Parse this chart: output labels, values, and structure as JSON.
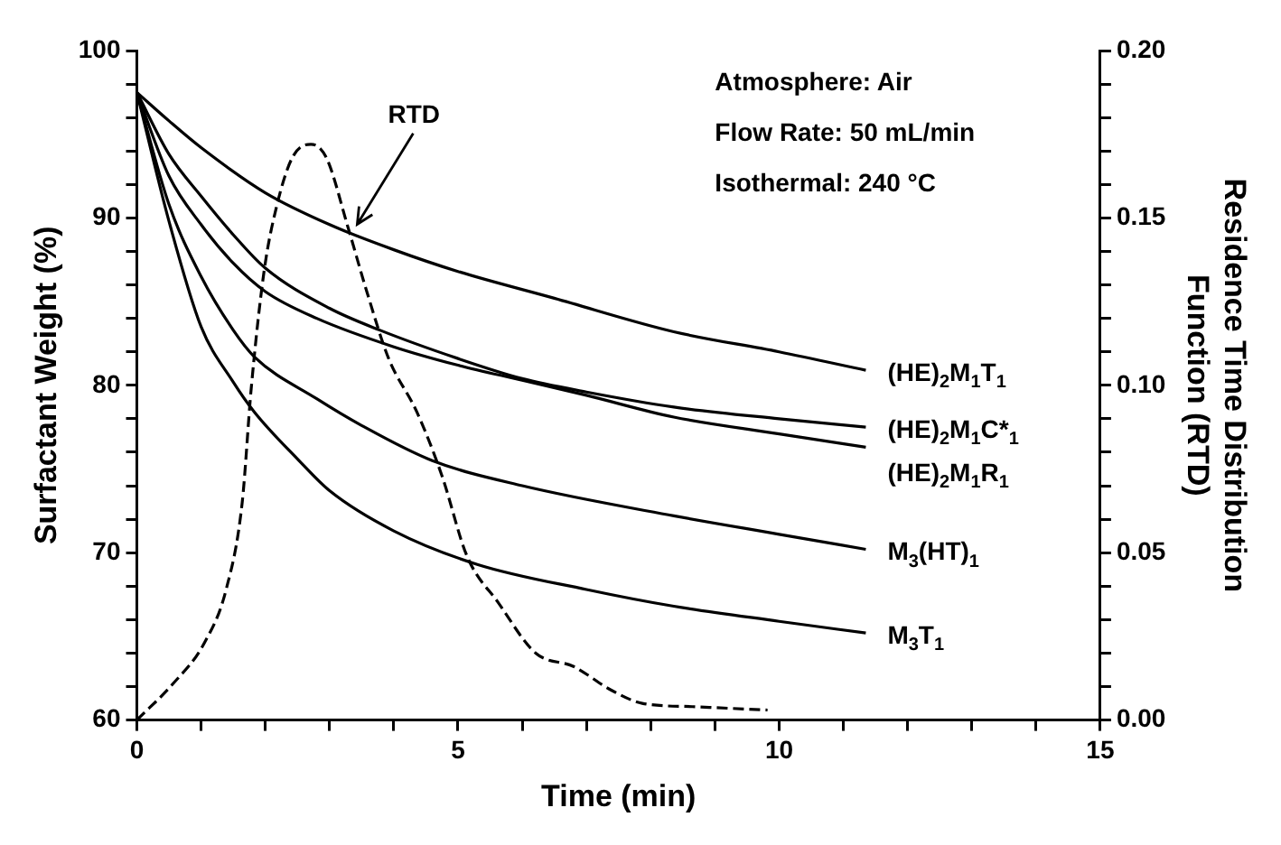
{
  "chart_data": {
    "type": "line",
    "xlabel": "Time (min)",
    "ylabel": "Surfactant Weight (%)",
    "y2label": "Residence Time Distribution Function (RTD)",
    "xlim": [
      0,
      15
    ],
    "ylim": [
      60,
      100
    ],
    "y2lim": [
      0,
      0.2
    ],
    "xticks": [
      0,
      {
        "value": 1,
        "label": null
      },
      {
        "value": 2,
        "label": null
      },
      {
        "value": 3,
        "label": null
      },
      {
        "value": 4,
        "label": null
      },
      5,
      {
        "value": 6,
        "label": null
      },
      {
        "value": 7,
        "label": null
      },
      {
        "value": 8,
        "label": null
      },
      {
        "value": 9,
        "label": null
      },
      10,
      {
        "value": 11,
        "label": null
      },
      {
        "value": 12,
        "label": null
      },
      {
        "value": 13,
        "label": null
      },
      {
        "value": 14,
        "label": null
      },
      15
    ],
    "yticks": [
      60,
      {
        "value": 62,
        "label": null
      },
      {
        "value": 64,
        "label": null
      },
      {
        "value": 66,
        "label": null
      },
      {
        "value": 68,
        "label": null
      },
      70,
      {
        "value": 72,
        "label": null
      },
      {
        "value": 74,
        "label": null
      },
      {
        "value": 76,
        "label": null
      },
      {
        "value": 78,
        "label": null
      },
      80,
      {
        "value": 82,
        "label": null
      },
      {
        "value": 84,
        "label": null
      },
      {
        "value": 86,
        "label": null
      },
      {
        "value": 88,
        "label": null
      },
      90,
      {
        "value": 92,
        "label": null
      },
      {
        "value": 94,
        "label": null
      },
      {
        "value": 96,
        "label": null
      },
      {
        "value": 98,
        "label": null
      },
      100
    ],
    "y2ticks": [
      {
        "value": 0,
        "label": "0.00"
      },
      {
        "value": 0.01,
        "label": null
      },
      {
        "value": 0.02,
        "label": null
      },
      {
        "value": 0.03,
        "label": null
      },
      {
        "value": 0.04,
        "label": null
      },
      {
        "value": 0.05,
        "label": "0.05"
      },
      {
        "value": 0.06,
        "label": null
      },
      {
        "value": 0.07,
        "label": null
      },
      {
        "value": 0.08,
        "label": null
      },
      {
        "value": 0.09,
        "label": null
      },
      {
        "value": 0.1,
        "label": "0.10"
      },
      {
        "value": 0.11,
        "label": null
      },
      {
        "value": 0.12,
        "label": null
      },
      {
        "value": 0.13,
        "label": null
      },
      {
        "value": 0.14,
        "label": null
      },
      {
        "value": 0.15,
        "label": "0.15"
      },
      {
        "value": 0.16,
        "label": null
      },
      {
        "value": 0.17,
        "label": null
      },
      {
        "value": 0.18,
        "label": null
      },
      {
        "value": 0.19,
        "label": null
      },
      {
        "value": 0.2,
        "label": "0.20"
      }
    ],
    "grid": false,
    "legend": false,
    "marker": "none",
    "annotations": [
      "Atmosphere: Air",
      "Flow Rate: 50 mL/min",
      "Isothermal: 240 °C"
    ],
    "series": [
      {
        "name": "(HE)$_{2}$M$_{1}$T$_{1}$",
        "color": "#000000",
        "line_style": "solid",
        "x": [
          0,
          0.5,
          1,
          2,
          3,
          4,
          5,
          6.5,
          8.36,
          10,
          11.35
        ],
        "values": [
          97.5,
          95.8,
          94.2,
          91.5,
          89.6,
          88.1,
          86.8,
          85.2,
          83.2,
          82.0,
          80.9
        ]
      },
      {
        "name": "(HE)$_{2}$M$_{1}$C*$_{1}$",
        "color": "#000000",
        "line_style": "solid",
        "x": [
          0,
          0.5,
          1,
          1.5,
          2,
          3,
          3.78,
          5,
          6,
          7,
          8.36,
          10,
          11.35
        ],
        "values": [
          97.5,
          93.8,
          91.3,
          89.0,
          87.0,
          84.6,
          83.3,
          81.6,
          80.4,
          79.6,
          78.7,
          78.0,
          77.5
        ]
      },
      {
        "name": "(HE)$_{2}$M$_{1}$R$_{1}$",
        "color": "#000000",
        "line_style": "solid",
        "x": [
          0,
          0.5,
          1,
          1.5,
          2,
          2.8,
          4,
          5,
          6,
          7,
          8.36,
          10,
          11.35
        ],
        "values": [
          97.5,
          92.5,
          89.6,
          87.3,
          85.6,
          84.0,
          82.3,
          81.2,
          80.3,
          79.4,
          78.1,
          77.1,
          76.3
        ]
      },
      {
        "name": "M$_{3}$(HT)$_{1}$",
        "color": "#000000",
        "line_style": "solid",
        "x": [
          0,
          0.5,
          1,
          1.5,
          1.83,
          2.8,
          3.5,
          4.6,
          6,
          8.36,
          10,
          11.35
        ],
        "values": [
          97.5,
          90.8,
          86.5,
          83.3,
          81.7,
          79.2,
          77.6,
          75.5,
          74.0,
          72.2,
          71.1,
          70.2
        ]
      },
      {
        "name": "M$_{3}$T$_{1}$",
        "color": "#000000",
        "line_style": "solid",
        "x": [
          0,
          0.5,
          1,
          1.5,
          1.83,
          2.5,
          3,
          4,
          5.3,
          7,
          8.36,
          10,
          11.35
        ],
        "values": [
          97.5,
          89.8,
          83.5,
          80.2,
          78.4,
          75.6,
          73.7,
          71.3,
          69.3,
          67.8,
          66.8,
          65.9,
          65.2
        ]
      },
      {
        "name": "RTD",
        "color": "#000000",
        "line_style": "dashed",
        "axis": "y2",
        "x": [
          0,
          0.57,
          1.05,
          1.39,
          1.64,
          1.78,
          1.98,
          2.17,
          2.42,
          2.71,
          2.95,
          3.29,
          3.58,
          3.92,
          4.36,
          4.75,
          5.14,
          5.63,
          6.21,
          6.8,
          7.38,
          7.87,
          8.65,
          9.82
        ],
        "values": [
          0,
          0.011,
          0.023,
          0.039,
          0.065,
          0.099,
          0.134,
          0.153,
          0.168,
          0.172,
          0.168,
          0.147,
          0.128,
          0.108,
          0.092,
          0.073,
          0.049,
          0.035,
          0.02,
          0.016,
          0.009,
          0.005,
          0.004,
          0.003
        ]
      }
    ]
  }
}
